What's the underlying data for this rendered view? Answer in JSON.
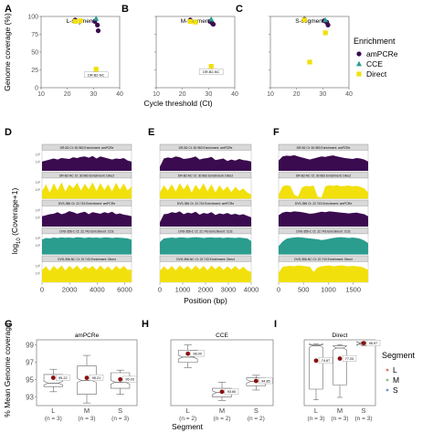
{
  "panel_letters": [
    "A",
    "B",
    "C",
    "D",
    "E",
    "F",
    "G",
    "H",
    "I"
  ],
  "top_row": {
    "ylabel": "Genome coverage (%)",
    "xlabel": "Cycle threshold (Ct)",
    "panels": [
      {
        "title": "L-segment"
      },
      {
        "title": "M-segment"
      },
      {
        "title": "S-segment"
      }
    ]
  },
  "legend_enrichment": {
    "title": "Enrichment",
    "items": [
      {
        "label": "amPCRe",
        "color": "#3b0b4f",
        "shape": "circle"
      },
      {
        "label": "CCE",
        "color": "#2a9d8f",
        "shape": "triangle"
      },
      {
        "label": "Direct",
        "color": "#f2e00c",
        "shape": "square"
      }
    ]
  },
  "middle_row": {
    "ylabel_prefix": "log",
    "ylabel_sub": "10",
    "ylabel_suffix": " (Coverage+1)",
    "xlabel": "Position (bp)",
    "panels": [
      {
        "ticks": [
          "0",
          "2000",
          "4000",
          "6000"
        ]
      },
      {
        "ticks": [
          "0",
          "1000",
          "2000",
          "3000",
          "4000"
        ]
      },
      {
        "ticks": [
          "0",
          "500",
          "1000",
          "1500"
        ]
      }
    ],
    "track_headers": [
      "DR-B2  Ct: 30.983  Enrichment: amPCRe",
      "DR-B2-NC  Ct: 30.983  Enrichment: Direct",
      "DVS-356  Ct: 22.743  Enrichment: amPCRe",
      "DVS-356-C  Ct: 22.743  Enrichment: CCE",
      "DVS-356-NC  Ct: 22.743  Enrichment: Direct"
    ]
  },
  "bottom_row": {
    "ylabel": "% Mean Genome coverage",
    "xlabel": "Segment",
    "yticks": [
      "93",
      "95",
      "97",
      "99"
    ],
    "panels": [
      {
        "title": "amPCRe",
        "categories": [
          "L",
          "M",
          "S"
        ],
        "counts": [
          "(n = 3)",
          "(n = 3)",
          "(n = 3)"
        ],
        "means": [
          "95.22",
          "95.21",
          "95.03"
        ]
      },
      {
        "title": "CCE",
        "categories": [
          "L",
          "M",
          "S"
        ],
        "counts": [
          "(n = 2)",
          "(n = 2)",
          "(n = 2)"
        ],
        "means": [
          "98.00",
          "93.60",
          "94.85"
        ]
      },
      {
        "title": "Direct",
        "categories": [
          "L",
          "M",
          "S"
        ],
        "counts": [
          "(n = 3)",
          "(n = 3)",
          "(n = 3)"
        ],
        "means": [
          "74.67",
          "77.20",
          "95.97"
        ]
      }
    ]
  },
  "legend_segment": {
    "title": "Segment",
    "items": [
      {
        "label": "L",
        "color": "#e8735a"
      },
      {
        "label": "M",
        "color": "#7bc67b"
      },
      {
        "label": "S",
        "color": "#7b8fd4"
      }
    ]
  },
  "chart_data": [
    {
      "type": "scatter",
      "title": "L-segment",
      "xlabel": "Cycle threshold (Ct)",
      "ylabel": "Genome coverage (%)",
      "xlim": [
        10,
        40
      ],
      "ylim": [
        0,
        100
      ],
      "series": [
        {
          "name": "amPCRe",
          "points": [
            [
              23,
              95
            ],
            [
              30.5,
              93
            ],
            [
              31.5,
              88
            ],
            [
              31.8,
              80
            ]
          ]
        },
        {
          "name": "CCE",
          "points": [
            [
              31,
              97
            ]
          ]
        },
        {
          "name": "Direct",
          "points": [
            [
              23,
              93
            ],
            [
              25,
              94
            ],
            [
              31,
              26
            ]
          ]
        }
      ],
      "annotations": [
        {
          "text": "DR-B2-NC",
          "x": 31,
          "y": 26
        }
      ]
    },
    {
      "type": "scatter",
      "title": "M-segment",
      "xlabel": "Cycle threshold (Ct)",
      "ylabel": "Genome coverage (%)",
      "xlim": [
        10,
        40
      ],
      "ylim": [
        0,
        100
      ],
      "series": [
        {
          "name": "amPCRe",
          "points": [
            [
              23,
              95
            ],
            [
              30.5,
              93
            ],
            [
              31.5,
              90
            ],
            [
              31.8,
              89
            ]
          ]
        },
        {
          "name": "CCE",
          "points": [
            [
              31,
              96
            ]
          ]
        },
        {
          "name": "Direct",
          "points": [
            [
              23,
              93
            ],
            [
              25,
              92
            ],
            [
              31,
              30
            ]
          ]
        }
      ],
      "annotations": [
        {
          "text": "DR-B2-NC",
          "x": 31,
          "y": 30
        }
      ]
    },
    {
      "type": "scatter",
      "title": "S-segment",
      "xlabel": "Cycle threshold (Ct)",
      "ylabel": "Genome coverage (%)",
      "xlim": [
        10,
        40
      ],
      "ylim": [
        0,
        100
      ],
      "series": [
        {
          "name": "amPCRe",
          "points": [
            [
              23,
              96
            ],
            [
              30.5,
              94
            ],
            [
              31.5,
              92
            ],
            [
              32,
              88
            ]
          ]
        },
        {
          "name": "CCE",
          "points": [
            [
              31,
              95
            ]
          ]
        },
        {
          "name": "Direct",
          "points": [
            [
              23,
              95
            ],
            [
              25,
              36
            ],
            [
              31,
              77
            ]
          ]
        }
      ]
    },
    {
      "type": "area",
      "xlabel": "Position (bp)",
      "xlim": [
        0,
        6500
      ],
      "series": [
        {
          "name": "DR-B2  Ct: 30.983  Enrichment: amPCRe",
          "color": "#3b0b4f",
          "profile": [
            0.45,
            0.5,
            0.55,
            0.6,
            0.55,
            0.62,
            0.6,
            0.58,
            0.66,
            0.62,
            0.68,
            0.7,
            0.64,
            0.72,
            0.6,
            0.7,
            0.65,
            0.6,
            0.55,
            0.6,
            0.58,
            0.62,
            0.5,
            0.45
          ]
        },
        {
          "name": "DR-B2-NC  Ct: 30.983  Enrichment: Direct",
          "color": "#f2e00c",
          "profile": [
            0.35,
            0.7,
            0.3,
            0.75,
            0.4,
            0.8,
            0.35,
            0.7,
            0.5,
            0.78,
            0.4,
            0.72,
            0.45,
            0.8,
            0.38,
            0.76,
            0.42,
            0.7,
            0.36,
            0.78,
            0.44,
            0.74,
            0.4,
            0.6
          ]
        },
        {
          "name": "DVS-356  Ct: 22.743  Enrichment: amPCRe",
          "color": "#3b0b4f",
          "profile": [
            0.5,
            0.55,
            0.6,
            0.62,
            0.7,
            0.6,
            0.65,
            0.75,
            0.7,
            0.62,
            0.68,
            0.72,
            0.6,
            0.7,
            0.66,
            0.62,
            0.7,
            0.65,
            0.72,
            0.6,
            0.64,
            0.58,
            0.55,
            0.5
          ]
        },
        {
          "name": "DVS-356-C  Ct: 22.743  Enrichment: CCE",
          "color": "#2a9d8f",
          "profile": [
            0.72,
            0.8,
            0.78,
            0.82,
            0.8,
            0.83,
            0.81,
            0.82,
            0.8,
            0.84,
            0.82,
            0.8,
            0.83,
            0.81,
            0.82,
            0.8,
            0.83,
            0.82,
            0.8,
            0.82,
            0.81,
            0.8,
            0.78,
            0.72
          ]
        },
        {
          "name": "DVS-356-NC  Ct: 22.743  Enrichment: Direct",
          "color": "#f2e00c",
          "profile": [
            0.6,
            0.78,
            0.55,
            0.8,
            0.62,
            0.82,
            0.58,
            0.8,
            0.64,
            0.82,
            0.6,
            0.78,
            0.66,
            0.8,
            0.6,
            0.82,
            0.62,
            0.78,
            0.58,
            0.8,
            0.64,
            0.8,
            0.6,
            0.62
          ]
        }
      ]
    },
    {
      "type": "area",
      "xlabel": "Position (bp)",
      "xlim": [
        0,
        4000
      ],
      "series": [
        {
          "name": "DR-B2  Ct: 30.983  Enrichment: amPCRe",
          "color": "#3b0b4f",
          "profile": [
            0.2,
            0.6,
            0.65,
            0.62,
            0.7,
            0.66,
            0.58,
            0.6,
            0.64,
            0.7,
            0.55,
            0.6,
            0.62,
            0.68,
            0.52,
            0.56,
            0.6,
            0.48,
            0.55,
            0.5,
            0.58,
            0.52,
            0.5,
            0.45
          ]
        },
        {
          "name": "DR-B2-NC  Ct: 30.983  Enrichment: Direct",
          "color": "#f2e00c",
          "profile": [
            0.3,
            0.65,
            0.4,
            0.7,
            0.35,
            0.75,
            0.45,
            0.72,
            0.3,
            0.68,
            0.42,
            0.75,
            0.36,
            0.7,
            0.3,
            0.65,
            0.4,
            0.6,
            0.32,
            0.58,
            0.38,
            0.5,
            0.3,
            0.2
          ]
        },
        {
          "name": "DVS-356  Ct: 22.743  Enrichment: amPCRe",
          "color": "#3b0b4f",
          "profile": [
            0.2,
            0.6,
            0.62,
            0.7,
            0.66,
            0.74,
            0.6,
            0.68,
            0.64,
            0.72,
            0.58,
            0.66,
            0.62,
            0.7,
            0.56,
            0.64,
            0.6,
            0.66,
            0.58,
            0.62,
            0.56,
            0.6,
            0.52,
            0.45
          ]
        },
        {
          "name": "DVS-356-C  Ct: 22.743  Enrichment: CCE",
          "color": "#2a9d8f",
          "profile": [
            0.6,
            0.78,
            0.8,
            0.82,
            0.8,
            0.83,
            0.82,
            0.8,
            0.82,
            0.84,
            0.82,
            0.8,
            0.82,
            0.83,
            0.81,
            0.82,
            0.8,
            0.82,
            0.81,
            0.8,
            0.82,
            0.8,
            0.78,
            0.65
          ]
        },
        {
          "name": "DVS-356-NC  Ct: 22.743  Enrichment: Direct",
          "color": "#f2e00c",
          "profile": [
            0.55,
            0.78,
            0.6,
            0.8,
            0.58,
            0.82,
            0.64,
            0.8,
            0.6,
            0.82,
            0.62,
            0.8,
            0.58,
            0.82,
            0.64,
            0.8,
            0.6,
            0.78,
            0.62,
            0.8,
            0.6,
            0.76,
            0.58,
            0.5
          ]
        }
      ]
    },
    {
      "type": "area",
      "xlabel": "Position (bp)",
      "xlim": [
        0,
        1800
      ],
      "series": [
        {
          "name": "DR-B2  Ct: 30.983  Enrichment: amPCRe",
          "color": "#3b0b4f",
          "profile": [
            0.5,
            0.7,
            0.74,
            0.72,
            0.76,
            0.7,
            0.65,
            0.6,
            0.55,
            0.6,
            0.65,
            0.7,
            0.68,
            0.72,
            0.75,
            0.7,
            0.66,
            0.62,
            0.6,
            0.58,
            0.62,
            0.6,
            0.55,
            0.45
          ]
        },
        {
          "name": "DR-B2-NC  Ct: 30.983  Enrichment: Direct",
          "color": "#f2e00c",
          "profile": [
            0.2,
            0.6,
            0.65,
            0.62,
            0.2,
            0.1,
            0.55,
            0.62,
            0.6,
            0.64,
            0.1,
            0.05,
            0.6,
            0.65,
            0.62,
            0.66,
            0.6,
            0.62,
            0.64,
            0.6,
            0.62,
            0.58,
            0.5,
            0.3
          ]
        },
        {
          "name": "DVS-356  Ct: 22.743  Enrichment: amPCRe",
          "color": "#3b0b4f",
          "profile": [
            0.55,
            0.68,
            0.72,
            0.7,
            0.74,
            0.72,
            0.7,
            0.66,
            0.62,
            0.64,
            0.68,
            0.72,
            0.7,
            0.74,
            0.72,
            0.7,
            0.68,
            0.66,
            0.64,
            0.66,
            0.68,
            0.64,
            0.6,
            0.5
          ]
        },
        {
          "name": "DVS-356-C  Ct: 22.743  Enrichment: CCE",
          "color": "#2a9d8f",
          "profile": [
            0.4,
            0.62,
            0.76,
            0.8,
            0.82,
            0.84,
            0.82,
            0.8,
            0.78,
            0.76,
            0.74,
            0.7,
            0.72,
            0.76,
            0.8,
            0.82,
            0.84,
            0.82,
            0.8,
            0.82,
            0.8,
            0.76,
            0.68,
            0.55
          ]
        },
        {
          "name": "DVS-356-NC  Ct: 22.743  Enrichment: Direct",
          "color": "#f2e00c",
          "profile": [
            0.45,
            0.75,
            0.78,
            0.8,
            0.78,
            0.82,
            0.8,
            0.78,
            0.76,
            0.5,
            0.72,
            0.78,
            0.8,
            0.82,
            0.78,
            0.8,
            0.82,
            0.8,
            0.78,
            0.8,
            0.78,
            0.76,
            0.7,
            0.6
          ]
        }
      ]
    },
    {
      "type": "box",
      "title": "amPCRe",
      "xlabel": "Segment",
      "ylabel": "% Mean Genome coverage",
      "ylim": [
        92,
        99.6
      ],
      "categories": [
        "L",
        "M",
        "S"
      ],
      "means": [
        95.22,
        95.21,
        95.03
      ],
      "boxes": [
        {
          "min": 93.6,
          "q1": 94.2,
          "median": 94.6,
          "q3": 95.6,
          "max": 96.2
        },
        {
          "min": 92.3,
          "q1": 93.3,
          "median": 94.9,
          "q3": 96.6,
          "max": 97.8
        },
        {
          "min": 93.3,
          "q1": 94.0,
          "median": 94.7,
          "q3": 95.8,
          "max": 96.1
        }
      ]
    },
    {
      "type": "box",
      "title": "CCE",
      "xlabel": "Segment",
      "ylabel": "% Mean Genome coverage",
      "ylim": [
        92,
        99.6
      ],
      "categories": [
        "L",
        "M",
        "S"
      ],
      "means": [
        98.0,
        93.6,
        94.85
      ],
      "boxes": [
        {
          "min": 96.4,
          "q1": 97.0,
          "median": 97.6,
          "q3": 98.4,
          "max": 99.0
        },
        {
          "min": 92.6,
          "q1": 93.0,
          "median": 93.5,
          "q3": 94.0,
          "max": 94.7
        },
        {
          "min": 93.8,
          "q1": 94.3,
          "median": 94.8,
          "q3": 95.2,
          "max": 95.5
        }
      ]
    },
    {
      "type": "box",
      "title": "Direct",
      "xlabel": "Segment",
      "ylabel": "% Mean Genome coverage",
      "ylim": [
        20,
        100
      ],
      "categories": [
        "L",
        "M",
        "S"
      ],
      "means": [
        74.67,
        77.2,
        95.97
      ],
      "boxes": [
        {
          "min": 27,
          "q1": 40,
          "median": 93,
          "q3": 94,
          "max": 95
        },
        {
          "min": 30,
          "q1": 45,
          "median": 90,
          "q3": 93,
          "max": 94
        },
        {
          "min": 93,
          "q1": 94.5,
          "median": 95.5,
          "q3": 96.8,
          "max": 97.4
        }
      ]
    }
  ]
}
